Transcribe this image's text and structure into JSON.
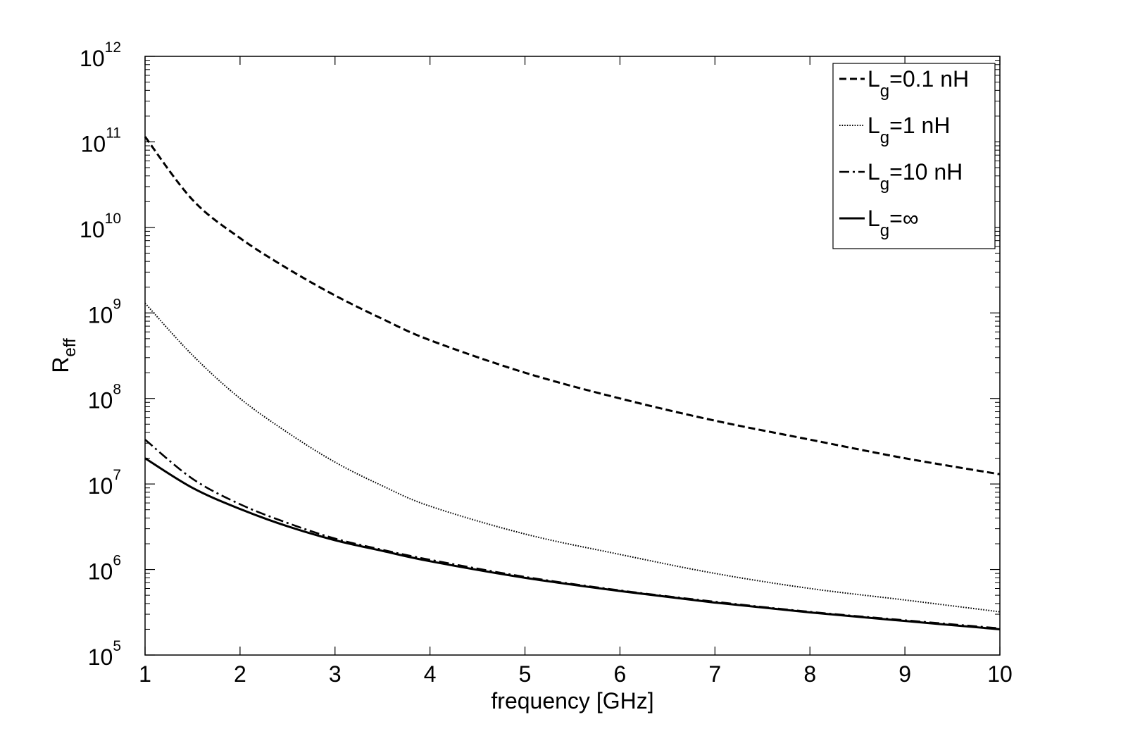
{
  "chart_data": {
    "type": "line",
    "title": "",
    "xlabel": "frequency [GHz]",
    "ylabel": {
      "main": "R",
      "sub": "eff"
    },
    "xlim": [
      1,
      10
    ],
    "ylim": [
      100000,
      1000000000000
    ],
    "yscale": "log",
    "grid": false,
    "legend_position": "top-right",
    "x_ticks": [
      "1",
      "2",
      "3",
      "4",
      "5",
      "6",
      "7",
      "8",
      "9",
      "10"
    ],
    "y_ticks": [
      {
        "base": "10",
        "exp": "5"
      },
      {
        "base": "10",
        "exp": "6"
      },
      {
        "base": "10",
        "exp": "7"
      },
      {
        "base": "10",
        "exp": "8"
      },
      {
        "base": "10",
        "exp": "9"
      },
      {
        "base": "10",
        "exp": "10"
      },
      {
        "base": "10",
        "exp": "11"
      },
      {
        "base": "10",
        "exp": "12"
      }
    ],
    "x": [
      1,
      1.5,
      2,
      2.5,
      3,
      3.5,
      4,
      5,
      6,
      7,
      8,
      9,
      10
    ],
    "series": [
      {
        "name": "L_g=0.1 nH",
        "label_main": "L",
        "label_sub": "g",
        "label_rest": "=0.1 nH",
        "style": "dashed",
        "values": [
          115000000000,
          21000000000,
          7500000000,
          3300000000,
          1600000000,
          850000000,
          480000000,
          200000000,
          100000000,
          55000000,
          33000000,
          20000000,
          13000000
        ]
      },
      {
        "name": "L_g=1 nH",
        "label_main": "L",
        "label_sub": "g",
        "label_rest": "=1 nH",
        "style": "dotted",
        "values": [
          1300000000,
          320000000,
          100000000,
          40000000,
          18000000,
          9500000,
          5500000,
          2600000,
          1500000,
          900000,
          600000,
          440000,
          320000
        ]
      },
      {
        "name": "L_g=10 nH",
        "label_main": "L",
        "label_sub": "g",
        "label_rest": "=10 nH",
        "style": "dashdot",
        "values": [
          33000000,
          11500000,
          5800000,
          3500000,
          2300000,
          1700000,
          1300000,
          820000,
          570000,
          420000,
          320000,
          255000,
          205000
        ]
      },
      {
        "name": "L_g=∞",
        "label_main": "L",
        "label_sub": "g",
        "label_rest": "=∞",
        "style": "solid",
        "values": [
          20000000,
          9000000,
          5100000,
          3200000,
          2200000,
          1650000,
          1250000,
          800000,
          560000,
          410000,
          315000,
          250000,
          200000
        ]
      }
    ]
  }
}
